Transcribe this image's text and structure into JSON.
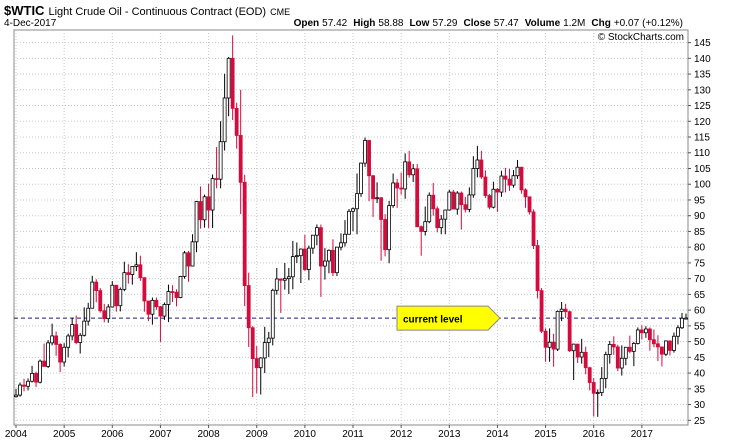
{
  "chart_data": {
    "type": "candlestick",
    "title": "$WTIC",
    "subtitle": "Light Crude Oil - Continuous Contract (EOD)",
    "exchange": "CME",
    "date": "4-Dec-2017",
    "stats": [
      {
        "label": "Open",
        "value": 57.42
      },
      {
        "label": "High",
        "value": 58.88
      },
      {
        "label": "Low",
        "value": 57.29
      },
      {
        "label": "Close",
        "value": 57.47
      },
      {
        "label": "Volume",
        "value": {
          "value": 1200000,
          "label": "1.2M"
        }
      },
      {
        "label": "Chg",
        "value": {
          "value": 0.07,
          "label": "+0.07"
        }
      },
      {
        "label": null,
        "value": {
          "value": 0.12,
          "label": "(+0.12%)"
        }
      }
    ],
    "watermark": "© StockCharts.com",
    "up_color": "#ffffff",
    "down_color": "#d60a3c",
    "grid": true,
    "ylim": [
      23.5,
      149
    ],
    "yticks": [
      25,
      30,
      35,
      40,
      45,
      50,
      55,
      60,
      65,
      70,
      75,
      80,
      85,
      90,
      95,
      100,
      105,
      110,
      115,
      120,
      125,
      130,
      135,
      140,
      145
    ],
    "annotation": {
      "text": "current level",
      "value": 57.47,
      "color": "#ffff00",
      "line_color": "#1a1a80"
    },
    "categories": [
      "2004",
      null,
      null,
      null,
      null,
      null,
      null,
      null,
      null,
      null,
      null,
      null,
      "2005",
      null,
      null,
      null,
      null,
      null,
      null,
      null,
      null,
      null,
      null,
      null,
      "2006",
      null,
      null,
      null,
      null,
      null,
      null,
      null,
      null,
      null,
      null,
      null,
      "2007",
      null,
      null,
      null,
      null,
      null,
      null,
      null,
      null,
      null,
      null,
      null,
      "2008",
      null,
      null,
      null,
      null,
      null,
      null,
      null,
      null,
      null,
      null,
      null,
      "2009",
      null,
      null,
      null,
      null,
      null,
      null,
      null,
      null,
      null,
      null,
      null,
      "2010",
      null,
      null,
      null,
      null,
      null,
      null,
      null,
      null,
      null,
      null,
      null,
      "2011",
      null,
      null,
      null,
      null,
      null,
      null,
      null,
      null,
      null,
      null,
      null,
      "2012",
      null,
      null,
      null,
      null,
      null,
      null,
      null,
      null,
      null,
      null,
      null,
      "2013",
      null,
      null,
      null,
      null,
      null,
      null,
      null,
      null,
      null,
      null,
      null,
      "2014",
      null,
      null,
      null,
      null,
      null,
      null,
      null,
      null,
      null,
      null,
      null,
      "2015",
      null,
      null,
      null,
      null,
      null,
      null,
      null,
      null,
      null,
      null,
      null,
      "2016",
      null,
      null,
      null,
      null,
      null,
      null,
      null,
      null,
      null,
      null,
      null,
      "2017",
      null,
      null,
      null,
      null,
      null,
      null,
      null,
      null,
      null,
      null,
      null
    ],
    "ohlc": [
      [
        32.5,
        35,
        32.2,
        33.0
      ],
      [
        33.0,
        37,
        32.5,
        36.2
      ],
      [
        36.2,
        38.2,
        34.2,
        35.8
      ],
      [
        35.8,
        38.3,
        34.5,
        37.4
      ],
      [
        37.4,
        42.3,
        37,
        39.9
      ],
      [
        39.9,
        40.5,
        35.6,
        37.1
      ],
      [
        37.1,
        44.3,
        36.7,
        43.8
      ],
      [
        43.8,
        49.4,
        42.2,
        42.1
      ],
      [
        42.1,
        50.5,
        41.6,
        49.6
      ],
      [
        49.6,
        55.7,
        48.8,
        51.8
      ],
      [
        51.8,
        53.2,
        45.5,
        49.1
      ],
      [
        49.1,
        49.5,
        40.3,
        43.5
      ],
      [
        43.5,
        49.5,
        42.1,
        48.2
      ],
      [
        48.2,
        52.5,
        45.0,
        51.8
      ],
      [
        51.8,
        57.6,
        50.4,
        55.4
      ],
      [
        55.4,
        58.3,
        49.2,
        49.7
      ],
      [
        49.7,
        52.7,
        46.2,
        52.0
      ],
      [
        52.0,
        60.9,
        51.6,
        56.5
      ],
      [
        56.5,
        62.3,
        55.1,
        60.6
      ],
      [
        60.6,
        70.9,
        60.6,
        68.9
      ],
      [
        68.9,
        69.8,
        62.5,
        66.2
      ],
      [
        66.2,
        67.0,
        59.2,
        59.8
      ],
      [
        59.8,
        62.0,
        56.1,
        57.3
      ],
      [
        57.3,
        61.9,
        56.0,
        61.0
      ],
      [
        61.0,
        69.2,
        60.8,
        67.9
      ],
      [
        67.9,
        68.0,
        59.5,
        61.4
      ],
      [
        61.4,
        67.2,
        59.6,
        66.6
      ],
      [
        66.6,
        75.4,
        66.0,
        71.9
      ],
      [
        71.9,
        74.6,
        68.4,
        71.3
      ],
      [
        71.3,
        74.0,
        68.1,
        73.9
      ],
      [
        73.9,
        78.4,
        72.4,
        74.4
      ],
      [
        74.4,
        77.3,
        69.3,
        70.3
      ],
      [
        70.3,
        70.4,
        59.5,
        62.9
      ],
      [
        62.9,
        62.9,
        56.5,
        58.7
      ],
      [
        58.7,
        64.0,
        55.4,
        63.1
      ],
      [
        63.1,
        64.0,
        60.1,
        61.1
      ],
      [
        61.1,
        61.3,
        49.9,
        58.1
      ],
      [
        58.1,
        62.4,
        56.9,
        61.8
      ],
      [
        61.8,
        68.1,
        56.2,
        65.9
      ],
      [
        65.9,
        67.9,
        62.6,
        65.7
      ],
      [
        65.7,
        66.6,
        61.2,
        64.0
      ],
      [
        64.0,
        70.9,
        63.8,
        70.7
      ],
      [
        70.7,
        78.8,
        70.0,
        78.2
      ],
      [
        78.2,
        78.8,
        69.0,
        74.0
      ],
      [
        74.0,
        84.1,
        73.9,
        81.7
      ],
      [
        81.7,
        94.7,
        78.4,
        94.5
      ],
      [
        94.5,
        99.3,
        85.9,
        88.7
      ],
      [
        88.7,
        96.7,
        86.2,
        96.0
      ],
      [
        96.0,
        100.1,
        86.1,
        91.8
      ],
      [
        91.8,
        103.1,
        86.1,
        101.8
      ],
      [
        101.8,
        111.8,
        98.7,
        101.6
      ],
      [
        101.6,
        120.0,
        98.7,
        113.5
      ],
      [
        113.5,
        135.1,
        110.7,
        127.4
      ],
      [
        127.4,
        140.4,
        121.6,
        140.0
      ],
      [
        140.0,
        147.3,
        120.4,
        124.1
      ],
      [
        124.1,
        125.9,
        111.3,
        115.5
      ],
      [
        115.5,
        130.0,
        90.5,
        100.6
      ],
      [
        100.6,
        103.0,
        61.3,
        67.8
      ],
      [
        67.8,
        71.9,
        48.3,
        54.4
      ],
      [
        54.4,
        54.9,
        32.4,
        44.6
      ],
      [
        44.6,
        48.6,
        33.6,
        41.7
      ],
      [
        41.7,
        45.0,
        33.2,
        44.8
      ],
      [
        44.8,
        54.7,
        40.0,
        49.7
      ],
      [
        49.7,
        53.1,
        45.1,
        51.1
      ],
      [
        51.1,
        66.8,
        48.8,
        66.3
      ],
      [
        66.3,
        73.4,
        64.9,
        69.9
      ],
      [
        69.9,
        70.0,
        59.1,
        69.5
      ],
      [
        69.5,
        75.0,
        66.5,
        70.0
      ],
      [
        70.0,
        73.4,
        65.1,
        70.6
      ],
      [
        70.6,
        82.0,
        66.6,
        77.0
      ],
      [
        77.0,
        81.5,
        75.0,
        77.3
      ],
      [
        77.3,
        79.6,
        68.6,
        79.4
      ],
      [
        79.4,
        83.9,
        72.4,
        72.9
      ],
      [
        72.9,
        80.5,
        69.5,
        79.7
      ],
      [
        79.7,
        83.9,
        77.9,
        83.8
      ],
      [
        83.8,
        87.2,
        80.6,
        86.2
      ],
      [
        86.2,
        87.2,
        64.2,
        74.0
      ],
      [
        74.0,
        79.7,
        69.7,
        75.6
      ],
      [
        75.6,
        79.3,
        71.7,
        79.0
      ],
      [
        79.0,
        82.5,
        70.8,
        71.9
      ],
      [
        71.9,
        80.1,
        70.8,
        80.0
      ],
      [
        80.0,
        84.4,
        79.0,
        81.4
      ],
      [
        81.4,
        88.6,
        80.2,
        84.1
      ],
      [
        84.1,
        92.1,
        84.0,
        91.4
      ],
      [
        91.4,
        92.6,
        85.1,
        92.2
      ],
      [
        92.2,
        103.4,
        84.1,
        97.0
      ],
      [
        97.0,
        106.9,
        96.0,
        106.7
      ],
      [
        106.7,
        114.8,
        105.5,
        113.9
      ],
      [
        113.9,
        114.1,
        94.6,
        102.7
      ],
      [
        102.7,
        102.9,
        89.6,
        95.4
      ],
      [
        95.4,
        100.6,
        94.0,
        95.7
      ],
      [
        95.7,
        95.9,
        75.7,
        88.8
      ],
      [
        88.8,
        90.5,
        77.1,
        79.2
      ],
      [
        79.2,
        94.7,
        74.9,
        93.2
      ],
      [
        93.2,
        103.4,
        92.5,
        100.4
      ],
      [
        100.4,
        101.7,
        92.5,
        98.8
      ],
      [
        98.8,
        103.7,
        96.7,
        98.5
      ],
      [
        98.5,
        109.8,
        95.4,
        107.1
      ],
      [
        107.1,
        110.6,
        102.1,
        103.0
      ],
      [
        103.0,
        106.4,
        100.7,
        104.9
      ],
      [
        104.9,
        106.4,
        86.3,
        86.5
      ],
      [
        86.5,
        86.9,
        77.3,
        85.0
      ],
      [
        85.0,
        92.9,
        83.7,
        88.1
      ],
      [
        88.1,
        97.4,
        87.6,
        96.5
      ],
      [
        96.5,
        100.4,
        90.0,
        92.2
      ],
      [
        92.2,
        93.0,
        84.7,
        86.2
      ],
      [
        86.2,
        90.2,
        84.1,
        88.9
      ],
      [
        88.9,
        91.9,
        84.1,
        91.8
      ],
      [
        91.8,
        98.2,
        91.6,
        97.5
      ],
      [
        97.5,
        98.2,
        92.0,
        92.1
      ],
      [
        92.1,
        97.8,
        90.3,
        97.2
      ],
      [
        97.2,
        97.7,
        85.6,
        93.5
      ],
      [
        93.5,
        96.0,
        91.0,
        92.0
      ],
      [
        92.0,
        99.0,
        91.1,
        96.6
      ],
      [
        96.6,
        108.9,
        95.7,
        105.0
      ],
      [
        105.0,
        112.2,
        102.2,
        107.7
      ],
      [
        107.7,
        110.6,
        101.7,
        102.3
      ],
      [
        102.3,
        104.4,
        95.6,
        96.4
      ],
      [
        96.4,
        96.9,
        92.0,
        92.7
      ],
      [
        92.7,
        100.8,
        92.3,
        98.4
      ],
      [
        98.4,
        98.8,
        91.2,
        97.5
      ],
      [
        97.5,
        104.3,
        96.0,
        102.6
      ],
      [
        102.6,
        105.2,
        97.4,
        101.6
      ],
      [
        101.6,
        104.9,
        97.9,
        99.7
      ],
      [
        99.7,
        104.5,
        98.9,
        102.7
      ],
      [
        102.7,
        107.7,
        101.7,
        105.4
      ],
      [
        105.4,
        105.5,
        97.0,
        98.2
      ],
      [
        98.2,
        98.7,
        92.5,
        96.0
      ],
      [
        96.0,
        96.0,
        90.4,
        91.2
      ],
      [
        91.2,
        92.0,
        79.4,
        80.5
      ],
      [
        80.5,
        82.3,
        63.7,
        66.2
      ],
      [
        66.2,
        67.0,
        52.7,
        53.3
      ],
      [
        53.3,
        54.2,
        43.6,
        48.2
      ],
      [
        48.2,
        54.2,
        43.6,
        49.8
      ],
      [
        49.8,
        52.5,
        42.0,
        47.6
      ],
      [
        47.6,
        59.9,
        47.0,
        59.6
      ],
      [
        59.6,
        62.6,
        56.5,
        60.3
      ],
      [
        60.3,
        62.0,
        57.5,
        59.5
      ],
      [
        59.5,
        59.8,
        46.7,
        47.1
      ],
      [
        47.1,
        49.3,
        37.8,
        49.2
      ],
      [
        49.2,
        49.2,
        43.2,
        45.1
      ],
      [
        45.1,
        50.9,
        43.0,
        46.6
      ],
      [
        46.6,
        48.4,
        39.6,
        41.7
      ],
      [
        41.7,
        42.0,
        34.5,
        37.0
      ],
      [
        37.0,
        38.4,
        26.2,
        33.6
      ],
      [
        33.6,
        34.8,
        26.1,
        33.8
      ],
      [
        33.8,
        41.9,
        32.7,
        38.3
      ],
      [
        38.3,
        46.8,
        35.2,
        45.9
      ],
      [
        45.9,
        50.2,
        43.0,
        49.1
      ],
      [
        49.1,
        51.7,
        45.8,
        48.3
      ],
      [
        48.3,
        49.0,
        40.6,
        41.6
      ],
      [
        41.6,
        48.8,
        39.2,
        44.7
      ],
      [
        44.7,
        48.3,
        42.5,
        48.2
      ],
      [
        48.2,
        51.9,
        46.3,
        46.9
      ],
      [
        46.9,
        49.9,
        42.2,
        49.4
      ],
      [
        49.4,
        54.5,
        49.1,
        53.7
      ],
      [
        53.7,
        55.2,
        50.7,
        52.8
      ],
      [
        52.8,
        54.9,
        51.2,
        54.0
      ],
      [
        54.0,
        54.5,
        47.1,
        50.6
      ],
      [
        50.6,
        53.8,
        48.2,
        49.3
      ],
      [
        49.3,
        52.0,
        43.8,
        48.3
      ],
      [
        48.3,
        48.4,
        42.1,
        46.0
      ],
      [
        46.0,
        50.4,
        45.4,
        50.2
      ],
      [
        50.2,
        50.4,
        45.6,
        47.2
      ],
      [
        47.2,
        52.9,
        46.5,
        51.7
      ],
      [
        51.7,
        55.2,
        49.1,
        54.4
      ],
      [
        54.4,
        59.1,
        54.0,
        57.4
      ],
      [
        57.4,
        58.9,
        57.3,
        57.47
      ]
    ]
  }
}
